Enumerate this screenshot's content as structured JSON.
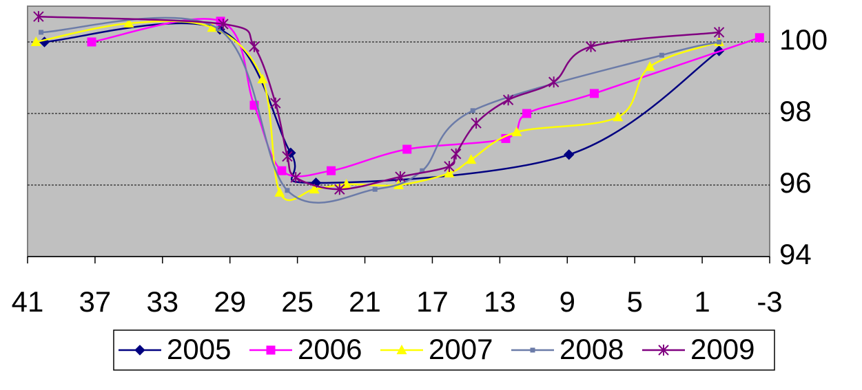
{
  "chart_data": {
    "type": "line",
    "xlim": [
      41,
      -3
    ],
    "xticks": [
      41,
      37,
      33,
      29,
      25,
      21,
      17,
      13,
      9,
      5,
      1,
      -3
    ],
    "ylim": [
      94,
      101
    ],
    "yticks": [
      94,
      96,
      98,
      100
    ],
    "grid": true,
    "series": [
      {
        "name": "2005",
        "color": "#000080",
        "marker": "diamond",
        "x": [
          40,
          29.6,
          25.4,
          23.9,
          8.9,
          0
        ],
        "values": [
          100,
          100.35,
          96.9,
          96.06,
          96.85,
          99.75
        ]
      },
      {
        "name": "2006",
        "color": "#FF00FF",
        "marker": "square",
        "x": [
          37.2,
          29.56,
          27.56,
          25.93,
          23.0,
          18.5,
          12.65,
          11.4,
          7.4,
          -2.4
        ],
        "values": [
          100,
          100.58,
          98.23,
          96.4,
          96.4,
          97.0,
          97.3,
          98.0,
          98.56,
          100.12
        ]
      },
      {
        "name": "2007",
        "color": "#FFFF00",
        "marker": "triangle",
        "x": [
          40.5,
          35.0,
          30.05,
          27.07,
          26.05,
          24.0,
          22.1,
          19.0,
          16.0,
          14.7,
          12.0,
          6.0,
          4.1,
          0
        ],
        "values": [
          100,
          100.52,
          100.4,
          98.96,
          95.79,
          95.88,
          96.02,
          96.0,
          96.33,
          96.71,
          97.48,
          97.9,
          99.31,
          100
        ]
      },
      {
        "name": "2008",
        "color": "#6B7BA8",
        "marker": "dash",
        "x": [
          40.2,
          29.7,
          25.6,
          20.4,
          17.6,
          14.6,
          3.4,
          0
        ],
        "values": [
          100.27,
          100.37,
          95.85,
          95.88,
          96.4,
          98.08,
          99.63,
          100
        ]
      },
      {
        "name": "2009",
        "color": "#800080",
        "marker": "star",
        "x": [
          40.35,
          29.4,
          27.56,
          26.3,
          25.6,
          25.1,
          22.5,
          18.9,
          16.0,
          15.6,
          14.4,
          12.5,
          9.8,
          7.6,
          0
        ],
        "values": [
          100.71,
          100.5,
          99.87,
          98.29,
          96.8,
          96.21,
          95.88,
          96.23,
          96.52,
          96.87,
          97.73,
          98.38,
          98.88,
          99.87,
          100.27
        ]
      }
    ]
  }
}
